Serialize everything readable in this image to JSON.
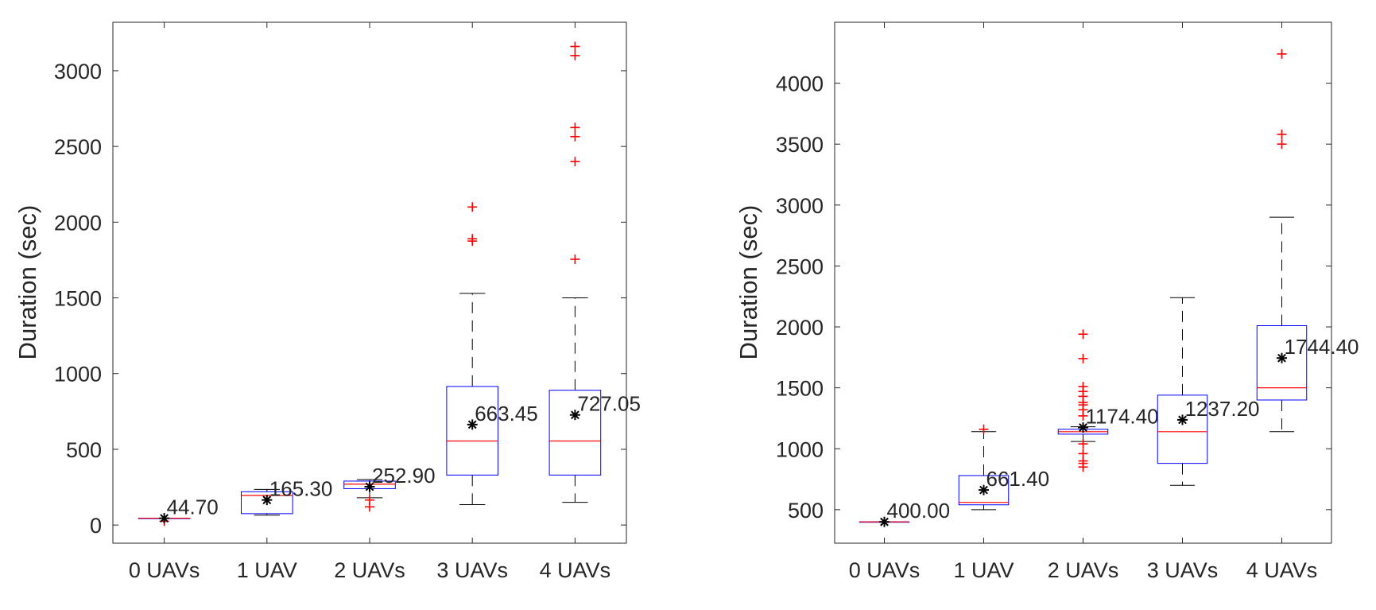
{
  "chart_data": [
    {
      "type": "box",
      "title": "",
      "xlabel": "",
      "ylabel": "Duration (sec)",
      "ylim": [
        -120,
        3320
      ],
      "yticks": [
        0,
        500,
        1000,
        1500,
        2000,
        2500,
        3000
      ],
      "categories": [
        "0 UAVs",
        "1 UAV",
        "2 UAVs",
        "3 UAVs",
        "4 UAVs"
      ],
      "colors": {
        "box": "#0000ff",
        "median": "#ff0000",
        "whisker": "#000000",
        "outlier": "#ff0000",
        "mean_marker": "#000000"
      },
      "boxes": [
        {
          "category": "0 UAVs",
          "q1": 45,
          "median": 45,
          "q3": 45,
          "whisker_low": 45,
          "whisker_high": 45,
          "mean": 44.7,
          "mean_label": "44.70",
          "outliers": [
            25
          ]
        },
        {
          "category": "1 UAV",
          "q1": 75,
          "median": 195,
          "q3": 220,
          "whisker_low": 65,
          "whisker_high": 235,
          "mean": 165.3,
          "mean_label": "165.30",
          "outliers": []
        },
        {
          "category": "2 UAVs",
          "q1": 240,
          "median": 270,
          "q3": 290,
          "whisker_low": 180,
          "whisker_high": 300,
          "mean": 252.9,
          "mean_label": "252.90",
          "outliers": [
            165,
            120
          ]
        },
        {
          "category": "3 UAVs",
          "q1": 330,
          "median": 555,
          "q3": 915,
          "whisker_low": 135,
          "whisker_high": 1530,
          "mean": 663.45,
          "mean_label": "663.45",
          "outliers": [
            1875,
            1890,
            2100
          ]
        },
        {
          "category": "4 UAVs",
          "q1": 330,
          "median": 555,
          "q3": 890,
          "whisker_low": 150,
          "whisker_high": 1500,
          "mean": 727.05,
          "mean_label": "727.05",
          "outliers": [
            1755,
            2400,
            2565,
            2625,
            3100,
            3160
          ]
        }
      ]
    },
    {
      "type": "box",
      "title": "",
      "xlabel": "",
      "ylabel": "Duration (sec)",
      "ylim": [
        225,
        4500
      ],
      "yticks": [
        500,
        1000,
        1500,
        2000,
        2500,
        3000,
        3500,
        4000
      ],
      "categories": [
        "0 UAVs",
        "1 UAV",
        "2 UAVs",
        "3 UAVs",
        "4 UAVs"
      ],
      "colors": {
        "box": "#0000ff",
        "median": "#ff0000",
        "whisker": "#000000",
        "outlier": "#ff0000",
        "mean_marker": "#000000"
      },
      "boxes": [
        {
          "category": "0 UAVs",
          "q1": 400,
          "median": 400,
          "q3": 400,
          "whisker_low": 400,
          "whisker_high": 400,
          "mean": 400.0,
          "mean_label": "400.00",
          "outliers": []
        },
        {
          "category": "1 UAV",
          "q1": 540,
          "median": 560,
          "q3": 780,
          "whisker_low": 500,
          "whisker_high": 1140,
          "mean": 661.4,
          "mean_label": "661.40",
          "outliers": [
            1160
          ]
        },
        {
          "category": "2 UAVs",
          "q1": 1120,
          "median": 1140,
          "q3": 1160,
          "whisker_low": 1060,
          "whisker_high": 1180,
          "mean": 1174.4,
          "mean_label": "1174.40",
          "outliers": [
            850,
            880,
            900,
            960,
            1040,
            1270,
            1320,
            1360,
            1380,
            1430,
            1470,
            1510,
            1740,
            1940
          ]
        },
        {
          "category": "3 UAVs",
          "q1": 880,
          "median": 1140,
          "q3": 1440,
          "whisker_low": 700,
          "whisker_high": 2240,
          "mean": 1237.2,
          "mean_label": "1237.20",
          "outliers": []
        },
        {
          "category": "4 UAVs",
          "q1": 1400,
          "median": 1500,
          "q3": 2010,
          "whisker_low": 1140,
          "whisker_high": 2900,
          "mean": 1744.4,
          "mean_label": "1744.40",
          "outliers": [
            3500,
            3580,
            4240
          ]
        }
      ]
    }
  ]
}
